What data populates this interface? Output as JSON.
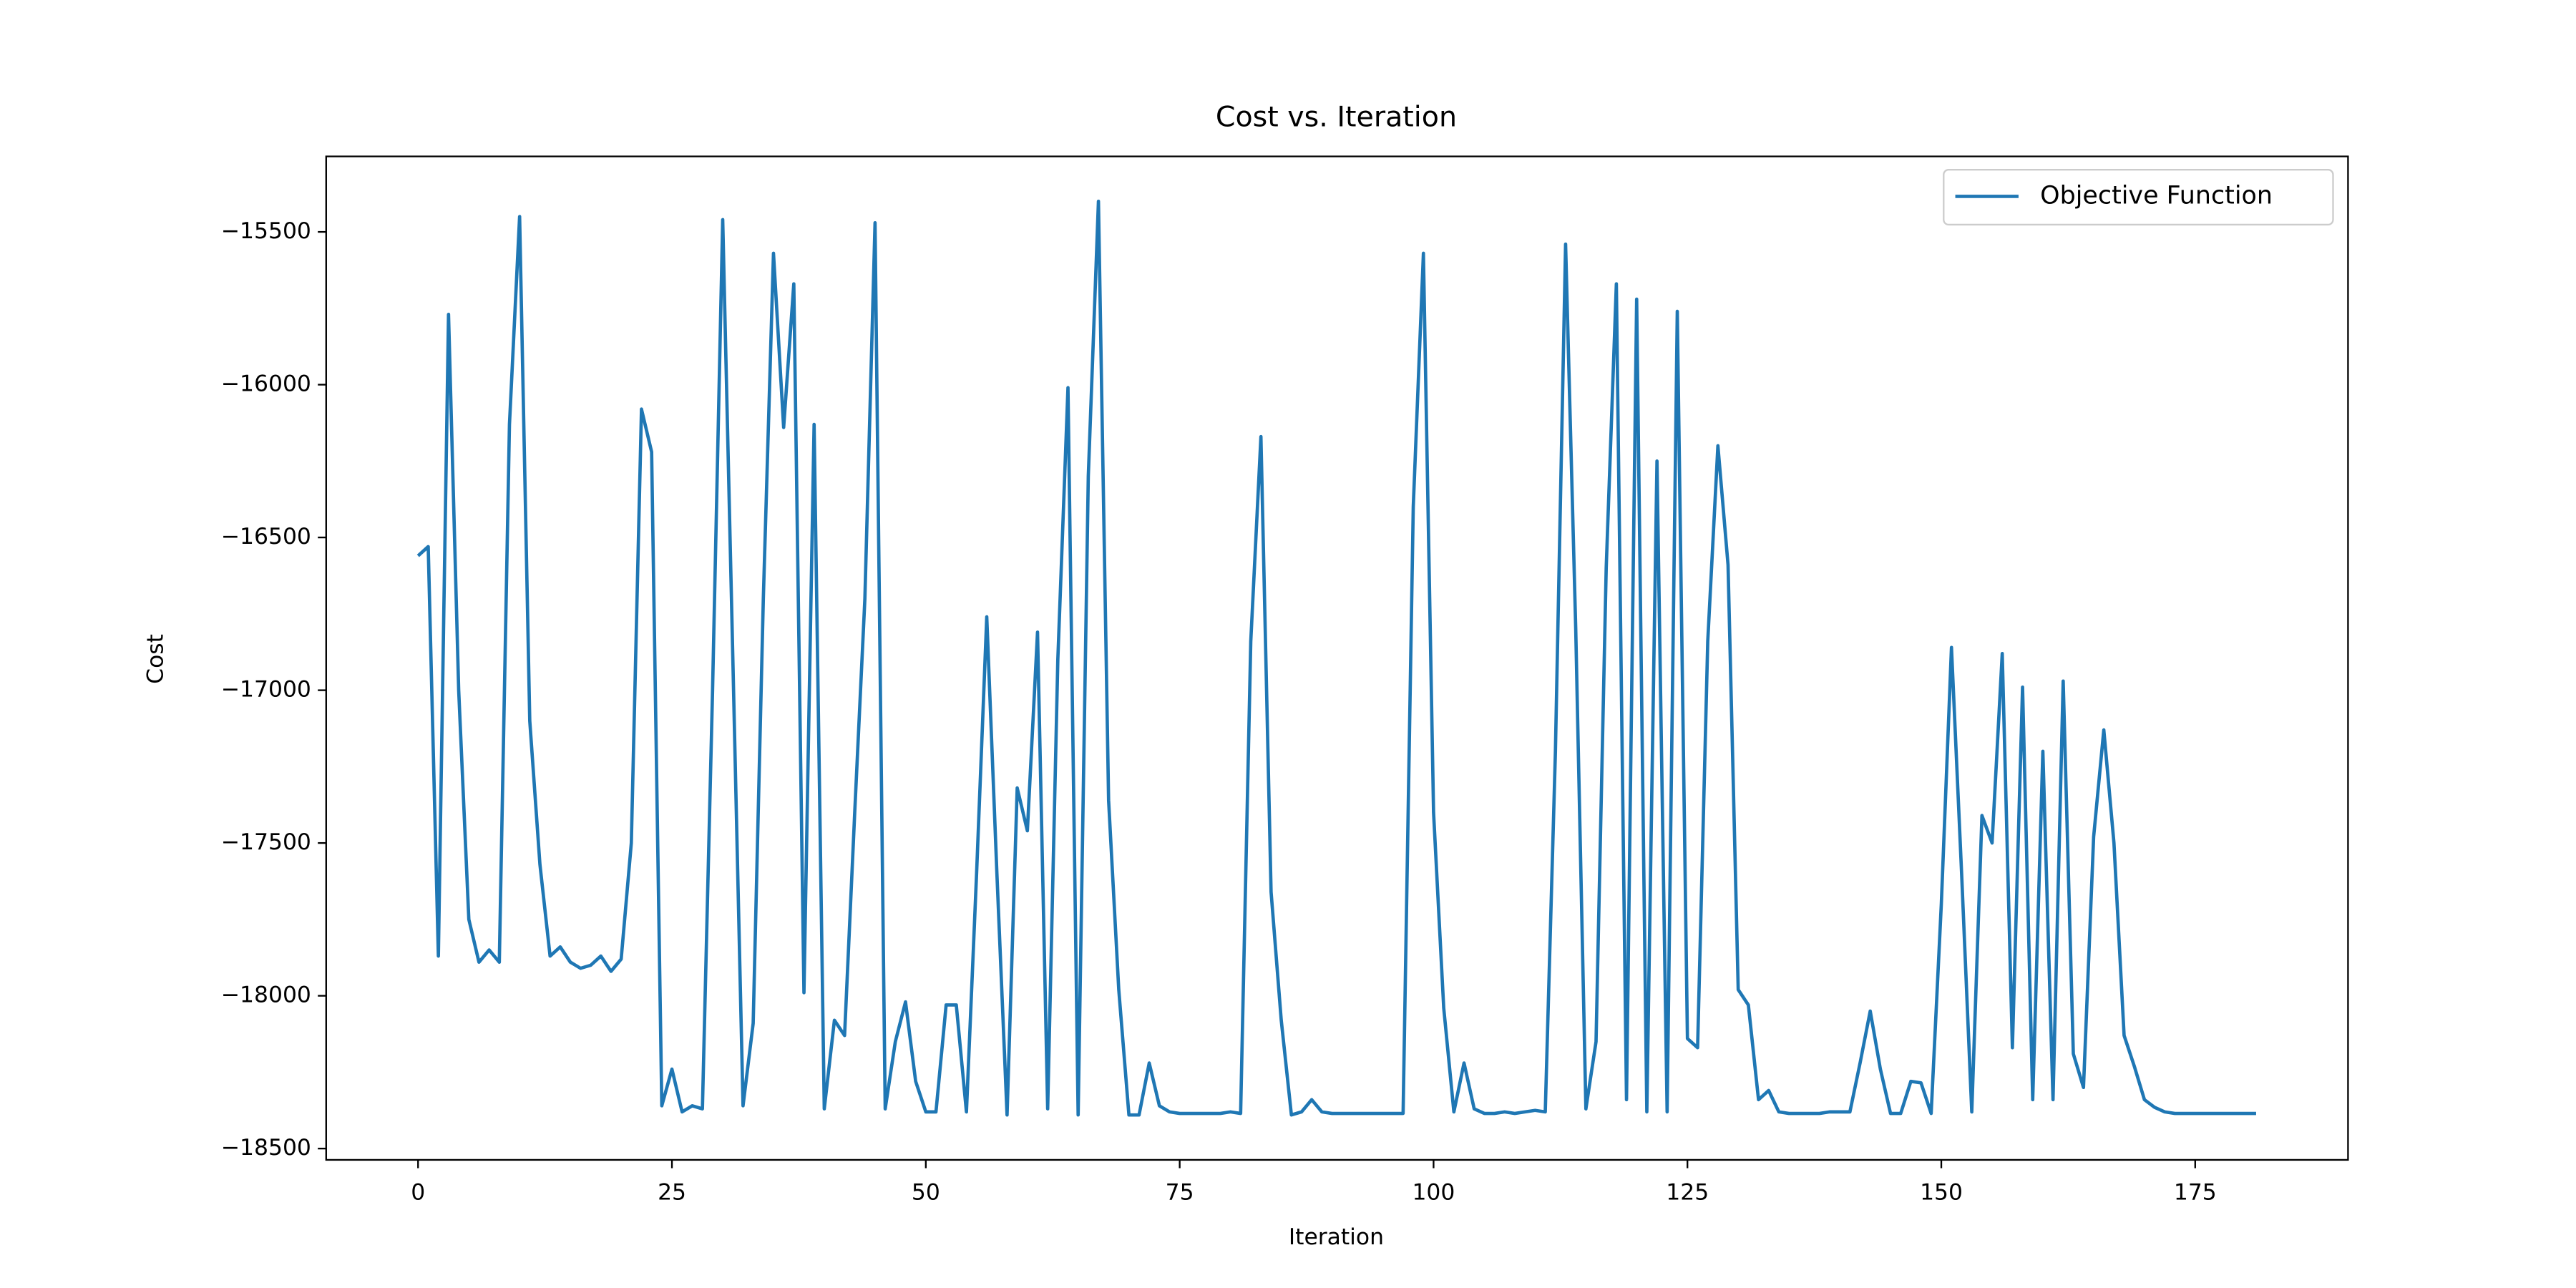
{
  "chart_data": {
    "type": "line",
    "title": "Cost vs. Iteration",
    "x_label": "Iteration",
    "y_label": "Cost",
    "x": [
      0,
      1,
      2,
      3,
      4,
      5,
      6,
      7,
      8,
      9,
      10,
      11,
      12,
      13,
      14,
      15,
      16,
      17,
      18,
      19,
      20,
      21,
      22,
      23,
      24,
      25,
      26,
      27,
      28,
      29,
      30,
      31,
      32,
      33,
      34,
      35,
      36,
      37,
      38,
      39,
      40,
      41,
      42,
      43,
      44,
      45,
      46,
      47,
      48,
      49,
      50,
      51,
      52,
      53,
      54,
      55,
      56,
      57,
      58,
      59,
      60,
      61,
      62,
      63,
      64,
      65,
      66,
      67,
      68,
      69,
      70,
      71,
      72,
      73,
      74,
      75,
      76,
      77,
      78,
      79,
      80,
      81,
      82,
      83,
      84,
      85,
      86,
      87,
      88,
      89,
      90,
      91,
      92,
      93,
      94,
      95,
      96,
      97,
      98,
      99,
      100,
      101,
      102,
      103,
      104,
      105,
      106,
      107,
      108,
      109,
      110,
      111,
      112,
      113,
      114,
      115,
      116,
      117,
      118,
      119,
      120,
      121,
      122,
      123,
      124,
      125,
      126,
      127,
      128,
      129,
      130,
      131,
      132,
      133,
      134,
      135,
      136,
      137,
      138,
      139,
      140,
      141,
      142,
      143,
      144,
      145,
      146,
      147,
      148,
      149,
      150,
      151,
      152,
      153,
      154,
      155,
      156,
      157,
      158,
      159,
      160,
      161,
      162,
      163,
      164,
      165,
      166,
      167,
      168,
      169,
      170,
      171,
      172,
      173,
      174,
      175,
      176,
      177,
      178,
      179,
      180,
      181
    ],
    "series": [
      {
        "name": "Objective Function",
        "color": "#1f77b4",
        "values": [
          -16560,
          -16530,
          -17870,
          -15770,
          -17000,
          -17750,
          -17890,
          -17850,
          -17890,
          -16130,
          -15450,
          -17100,
          -17570,
          -17870,
          -17840,
          -17890,
          -17910,
          -17900,
          -17870,
          -17920,
          -17880,
          -17500,
          -16080,
          -16220,
          -18360,
          -18240,
          -18380,
          -18360,
          -18370,
          -17000,
          -15460,
          -16900,
          -18360,
          -18090,
          -16700,
          -15570,
          -16140,
          -15670,
          -17990,
          -16130,
          -18370,
          -18080,
          -18130,
          -17400,
          -16700,
          -15470,
          -18370,
          -18150,
          -18020,
          -18280,
          -18380,
          -18380,
          -18030,
          -18030,
          -18380,
          -17600,
          -16760,
          -17600,
          -18390,
          -17320,
          -17460,
          -16810,
          -18370,
          -16900,
          -16010,
          -18390,
          -16300,
          -15400,
          -17360,
          -17980,
          -18390,
          -18390,
          -18220,
          -18360,
          -18380,
          -18385,
          -18385,
          -18385,
          -18385,
          -18385,
          -18380,
          -18385,
          -16840,
          -16170,
          -17660,
          -18080,
          -18390,
          -18380,
          -18340,
          -18380,
          -18385,
          -18385,
          -18385,
          -18385,
          -18385,
          -18385,
          -18385,
          -18385,
          -16400,
          -15570,
          -17400,
          -18040,
          -18380,
          -18220,
          -18370,
          -18385,
          -18385,
          -18380,
          -18385,
          -18380,
          -18375,
          -18380,
          -17200,
          -15540,
          -16800,
          -18370,
          -18150,
          -16600,
          -15670,
          -18340,
          -15720,
          -18380,
          -16250,
          -18380,
          -15760,
          -18140,
          -18170,
          -16840,
          -16200,
          -16590,
          -17980,
          -18030,
          -18340,
          -18310,
          -18380,
          -18385,
          -18385,
          -18385,
          -18385,
          -18380,
          -18380,
          -18380,
          -18220,
          -18050,
          -18240,
          -18385,
          -18385,
          -18280,
          -18285,
          -18385,
          -17700,
          -16860,
          -17600,
          -18380,
          -17410,
          -17500,
          -16880,
          -18170,
          -16990,
          -18340,
          -17200,
          -18340,
          -16970,
          -18190,
          -18300,
          -17480,
          -17130,
          -17500,
          -18130,
          -18230,
          -18340,
          -18365,
          -18380,
          -18385,
          -18385,
          -18385,
          -18385,
          -18385,
          -18385,
          -18385,
          -18385,
          -18385
        ]
      }
    ],
    "xlim": [
      -9.05,
      190.05
    ],
    "xticks": [
      0,
      25,
      50,
      75,
      100,
      125,
      150,
      175
    ],
    "ylim": [
      -18537,
      -15253
    ],
    "yticks": [
      {
        "value": -18500,
        "label": "−18500"
      },
      {
        "value": -18000,
        "label": "−18000"
      },
      {
        "value": -17500,
        "label": "−17500"
      },
      {
        "value": -17000,
        "label": "−17000"
      },
      {
        "value": -16500,
        "label": "−16500"
      },
      {
        "value": -16000,
        "label": "−16000"
      },
      {
        "value": -15500,
        "label": "−15500"
      }
    ],
    "legend": "upper right"
  }
}
